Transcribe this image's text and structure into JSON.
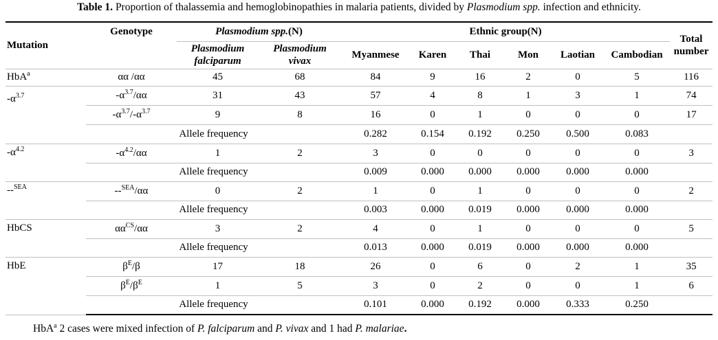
{
  "caption": {
    "label": "Table 1.",
    "text1": " Proportion of thalassemia and hemoglobinopathies in malaria patients, divided by ",
    "italic": "Plasmodium spp.",
    "text2": " infection and ethnicity."
  },
  "headers": {
    "mutation": "Mutation",
    "genotype": "Genotype",
    "plasmodium_group": "Plasmodium spp.",
    "plasmodium_suffix": "(N)",
    "falciparum_1": "Plasmodium",
    "falciparum_2": "falciparum",
    "vivax_1": "Plasmodium",
    "vivax_2": "vivax",
    "ethnic_group": "Ethnic group(N)",
    "myanmese": "Myanmese",
    "karen": "Karen",
    "thai": "Thai",
    "mon": "Mon",
    "laotian": "Laotian",
    "cambodian": "Cambodian",
    "total_1": "Total",
    "total_2": "number"
  },
  "mutations": {
    "hba": "HbA",
    "hba_sup": "a",
    "a37_base": "-α",
    "a37_sup": "3.7",
    "a42_base": "-α",
    "a42_sup": "4.2",
    "sea_base": "--",
    "sea_sup": "SEA",
    "hbcs": "HbCS",
    "hbe": "HbE"
  },
  "genotypes": {
    "aa_aa": "αα /αα",
    "a37_aa_a": "-α",
    "a37_aa_sup": "3.7",
    "a37_aa_b": "/αα",
    "a37_a37_a": "-α",
    "a37_a37_sup1": "3.7",
    "a37_a37_b": "/-α",
    "a37_a37_sup2": "3.7",
    "a42_aa_a": "-α",
    "a42_aa_sup": "4.2",
    "a42_aa_b": "/αα",
    "sea_aa_a": "--",
    "sea_aa_sup": "SEA",
    "sea_aa_b": "/αα",
    "cs_a": "αα",
    "cs_sup": "CS",
    "cs_b": "/αα",
    "be_b_a": "β",
    "be_b_sup": "E",
    "be_b_b": "/β",
    "be_be_a": "β",
    "be_be_sup1": "E",
    "be_be_b": "/β",
    "be_be_sup2": "E"
  },
  "allele_label": "Allele frequency",
  "rows": {
    "hba": [
      "45",
      "68",
      "84",
      "9",
      "16",
      "2",
      "0",
      "5",
      "116"
    ],
    "a37_aa": [
      "31",
      "43",
      "57",
      "4",
      "8",
      "1",
      "3",
      "1",
      "74"
    ],
    "a37_a37": [
      "9",
      "8",
      "16",
      "0",
      "1",
      "0",
      "0",
      "0",
      "17"
    ],
    "af_a37": [
      "0.282",
      "0.154",
      "0.192",
      "0.250",
      "0.500",
      "0.083"
    ],
    "a42_aa": [
      "1",
      "2",
      "3",
      "0",
      "0",
      "0",
      "0",
      "0",
      "3"
    ],
    "af_a42": [
      "0.009",
      "0.000",
      "0.000",
      "0.000",
      "0.000",
      "0.000"
    ],
    "sea_aa": [
      "0",
      "2",
      "1",
      "0",
      "1",
      "0",
      "0",
      "0",
      "2"
    ],
    "af_sea": [
      "0.003",
      "0.000",
      "0.019",
      "0.000",
      "0.000",
      "0.000"
    ],
    "cs_aa": [
      "3",
      "2",
      "4",
      "0",
      "1",
      "0",
      "0",
      "0",
      "5"
    ],
    "af_cs": [
      "0.013",
      "0.000",
      "0.019",
      "0.000",
      "0.000",
      "0.000"
    ],
    "be_b": [
      "17",
      "18",
      "26",
      "0",
      "6",
      "0",
      "2",
      "1",
      "35"
    ],
    "be_be": [
      "1",
      "5",
      "3",
      "0",
      "2",
      "0",
      "0",
      "1",
      "6"
    ],
    "af_be": [
      "0.101",
      "0.000",
      "0.192",
      "0.000",
      "0.333",
      "0.250"
    ]
  },
  "footnote": {
    "hba": "HbA",
    "sup": "a",
    "t1": " 2 cases were mixed infection of ",
    "i1": "P. falciparum",
    "t2": " and ",
    "i2": "P. vivax",
    "t3": " and 1 had ",
    "i3": "P. malariae",
    "t4": "."
  }
}
